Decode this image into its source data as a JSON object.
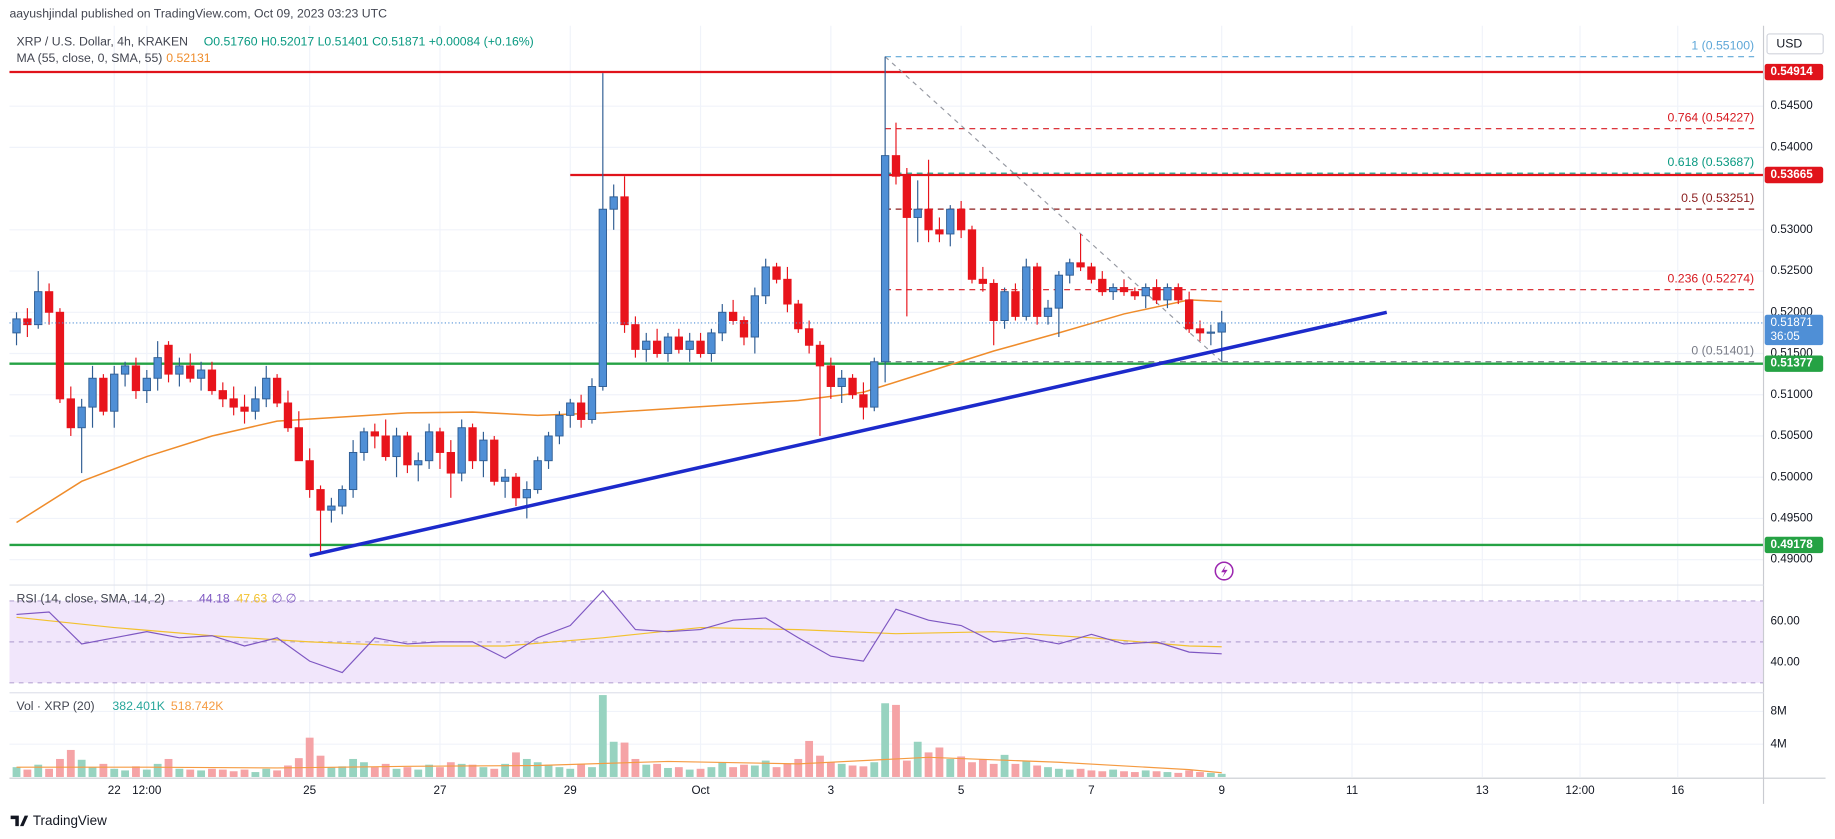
{
  "header": {
    "published": "aayushjindal published on TradingView.com, Oct 09, 2023 03:23 UTC",
    "currency": "USD",
    "brand": "TradingView"
  },
  "chart_data": {
    "type": "candlestick",
    "title": "XRP / U.S. Dollar, 4h, KRAKEN",
    "ohlc_legend": "O0.51760 H0.52017 L0.51401 C0.51871 +0.00084 (+0.16%)",
    "xlim": [
      -0.65,
      160.9
    ],
    "xticks": [
      {
        "value": 9,
        "label": "22"
      },
      {
        "value": 12,
        "label": "12:00"
      },
      {
        "value": 27,
        "label": "25"
      },
      {
        "value": 39,
        "label": "27"
      },
      {
        "value": 51,
        "label": "29"
      },
      {
        "value": 63,
        "label": "Oct"
      },
      {
        "value": 75,
        "label": "3"
      },
      {
        "value": 87,
        "label": "5"
      },
      {
        "value": 99,
        "label": "7"
      },
      {
        "value": 111,
        "label": "9"
      },
      {
        "value": 123,
        "label": "11"
      },
      {
        "value": 135,
        "label": "13"
      },
      {
        "value": 144,
        "label": "12:00"
      },
      {
        "value": 153,
        "label": "16"
      }
    ],
    "ylim": [
      0.4872,
      0.5539
    ],
    "yticks": [
      {
        "value": 0.49,
        "label": "0.49000"
      },
      {
        "value": 0.495,
        "label": "0.49500"
      },
      {
        "value": 0.5,
        "label": "0.50000"
      },
      {
        "value": 0.505,
        "label": "0.50500"
      },
      {
        "value": 0.51,
        "label": "0.51000"
      },
      {
        "value": 0.515,
        "label": "0.51500"
      },
      {
        "value": 0.52,
        "label": "0.52000"
      },
      {
        "value": 0.525,
        "label": "0.52500"
      },
      {
        "value": 0.53,
        "label": "0.53000"
      },
      {
        "value": 0.54,
        "label": "0.54000"
      },
      {
        "value": 0.545,
        "label": "0.54500"
      }
    ],
    "grid": true,
    "up_color": "#4f8fd6",
    "down_color": "#e8141c",
    "ohlc": [
      [
        0.5175,
        0.52,
        0.516,
        0.5192
      ],
      [
        0.5192,
        0.5205,
        0.517,
        0.5185
      ],
      [
        0.5185,
        0.525,
        0.518,
        0.5225
      ],
      [
        0.5225,
        0.5235,
        0.5185,
        0.52
      ],
      [
        0.52,
        0.5205,
        0.509,
        0.5095
      ],
      [
        0.5095,
        0.511,
        0.505,
        0.506
      ],
      [
        0.506,
        0.5095,
        0.5005,
        0.5085
      ],
      [
        0.5085,
        0.5135,
        0.506,
        0.512
      ],
      [
        0.512,
        0.5125,
        0.5075,
        0.508
      ],
      [
        0.508,
        0.5135,
        0.506,
        0.5125
      ],
      [
        0.5125,
        0.514,
        0.511,
        0.5135
      ],
      [
        0.5135,
        0.5145,
        0.5095,
        0.5105
      ],
      [
        0.5105,
        0.513,
        0.509,
        0.512
      ],
      [
        0.512,
        0.5165,
        0.5105,
        0.5145
      ],
      [
        0.516,
        0.5165,
        0.5115,
        0.5125
      ],
      [
        0.5125,
        0.5145,
        0.511,
        0.5135
      ],
      [
        0.5135,
        0.515,
        0.5115,
        0.512
      ],
      [
        0.512,
        0.514,
        0.5105,
        0.513
      ],
      [
        0.513,
        0.514,
        0.51,
        0.5105
      ],
      [
        0.5105,
        0.5115,
        0.5085,
        0.5095
      ],
      [
        0.5095,
        0.511,
        0.5075,
        0.5085
      ],
      [
        0.5085,
        0.51,
        0.5065,
        0.508
      ],
      [
        0.508,
        0.511,
        0.507,
        0.5095
      ],
      [
        0.5095,
        0.5135,
        0.5085,
        0.512
      ],
      [
        0.512,
        0.5125,
        0.5085,
        0.509
      ],
      [
        0.509,
        0.5105,
        0.5055,
        0.506
      ],
      [
        0.506,
        0.508,
        0.502,
        0.502
      ],
      [
        0.502,
        0.5035,
        0.4975,
        0.4985
      ],
      [
        0.4985,
        0.499,
        0.491,
        0.496
      ],
      [
        0.496,
        0.4975,
        0.4945,
        0.4965
      ],
      [
        0.4965,
        0.499,
        0.4955,
        0.4985
      ],
      [
        0.4985,
        0.5045,
        0.4975,
        0.503
      ],
      [
        0.503,
        0.506,
        0.502,
        0.5055
      ],
      [
        0.5055,
        0.5065,
        0.5035,
        0.505
      ],
      [
        0.505,
        0.507,
        0.502,
        0.5025
      ],
      [
        0.5025,
        0.506,
        0.5,
        0.505
      ],
      [
        0.505,
        0.5055,
        0.5005,
        0.5015
      ],
      [
        0.5015,
        0.503,
        0.4995,
        0.502
      ],
      [
        0.502,
        0.5065,
        0.501,
        0.5055
      ],
      [
        0.5055,
        0.506,
        0.501,
        0.503
      ],
      [
        0.503,
        0.5045,
        0.4975,
        0.5005
      ],
      [
        0.5005,
        0.507,
        0.4995,
        0.506
      ],
      [
        0.506,
        0.5065,
        0.501,
        0.502
      ],
      [
        0.502,
        0.5055,
        0.5,
        0.5045
      ],
      [
        0.5045,
        0.505,
        0.499,
        0.4995
      ],
      [
        0.4995,
        0.501,
        0.4975,
        0.5
      ],
      [
        0.5,
        0.5005,
        0.4965,
        0.4975
      ],
      [
        0.4975,
        0.4995,
        0.495,
        0.4985
      ],
      [
        0.4985,
        0.5025,
        0.498,
        0.502
      ],
      [
        0.502,
        0.5055,
        0.501,
        0.505
      ],
      [
        0.505,
        0.508,
        0.504,
        0.5075
      ],
      [
        0.5075,
        0.5095,
        0.506,
        0.509
      ],
      [
        0.509,
        0.51,
        0.506,
        0.507
      ],
      [
        0.507,
        0.512,
        0.5065,
        0.511
      ],
      [
        0.511,
        0.549,
        0.5105,
        0.5325
      ],
      [
        0.5325,
        0.5355,
        0.53,
        0.534
      ],
      [
        0.534,
        0.5365,
        0.5175,
        0.5185
      ],
      [
        0.5185,
        0.5195,
        0.5145,
        0.5155
      ],
      [
        0.5155,
        0.5175,
        0.514,
        0.5165
      ],
      [
        0.5165,
        0.518,
        0.5145,
        0.515
      ],
      [
        0.515,
        0.5175,
        0.514,
        0.517
      ],
      [
        0.517,
        0.518,
        0.515,
        0.5155
      ],
      [
        0.5155,
        0.5175,
        0.514,
        0.5165
      ],
      [
        0.5165,
        0.5175,
        0.5145,
        0.515
      ],
      [
        0.515,
        0.518,
        0.514,
        0.5175
      ],
      [
        0.5175,
        0.521,
        0.5165,
        0.52
      ],
      [
        0.52,
        0.5215,
        0.5185,
        0.519
      ],
      [
        0.519,
        0.5195,
        0.516,
        0.517
      ],
      [
        0.517,
        0.523,
        0.515,
        0.522
      ],
      [
        0.522,
        0.5265,
        0.521,
        0.5255
      ],
      [
        0.5255,
        0.526,
        0.5235,
        0.524
      ],
      [
        0.524,
        0.5255,
        0.52,
        0.521
      ],
      [
        0.521,
        0.5215,
        0.5175,
        0.518
      ],
      [
        0.518,
        0.519,
        0.515,
        0.516
      ],
      [
        0.516,
        0.5165,
        0.505,
        0.5135
      ],
      [
        0.5135,
        0.5145,
        0.5095,
        0.511
      ],
      [
        0.511,
        0.513,
        0.509,
        0.512
      ],
      [
        0.512,
        0.5125,
        0.5095,
        0.51
      ],
      [
        0.51,
        0.5115,
        0.507,
        0.5085
      ],
      [
        0.5085,
        0.5145,
        0.508,
        0.514
      ],
      [
        0.514,
        0.551,
        0.5115,
        0.539
      ],
      [
        0.539,
        0.543,
        0.5355,
        0.5365
      ],
      [
        0.5365,
        0.5375,
        0.5195,
        0.5315
      ],
      [
        0.5315,
        0.536,
        0.5285,
        0.5325
      ],
      [
        0.5325,
        0.5385,
        0.5285,
        0.53
      ],
      [
        0.53,
        0.5315,
        0.5285,
        0.5295
      ],
      [
        0.5295,
        0.533,
        0.528,
        0.5325
      ],
      [
        0.5325,
        0.5335,
        0.529,
        0.53
      ],
      [
        0.53,
        0.5305,
        0.5235,
        0.524
      ],
      [
        0.524,
        0.5255,
        0.5225,
        0.5235
      ],
      [
        0.5235,
        0.524,
        0.516,
        0.519
      ],
      [
        0.519,
        0.523,
        0.518,
        0.5225
      ],
      [
        0.5225,
        0.5235,
        0.519,
        0.5195
      ],
      [
        0.5195,
        0.5265,
        0.519,
        0.5255
      ],
      [
        0.5255,
        0.526,
        0.5185,
        0.5195
      ],
      [
        0.5195,
        0.5215,
        0.5185,
        0.5205
      ],
      [
        0.5205,
        0.525,
        0.517,
        0.5245
      ],
      [
        0.5245,
        0.5265,
        0.5235,
        0.526
      ],
      [
        0.526,
        0.5295,
        0.525,
        0.5255
      ],
      [
        0.5255,
        0.526,
        0.5235,
        0.524
      ],
      [
        0.524,
        0.525,
        0.522,
        0.5225
      ],
      [
        0.5225,
        0.5235,
        0.5215,
        0.523
      ],
      [
        0.523,
        0.524,
        0.522,
        0.5225
      ],
      [
        0.5225,
        0.523,
        0.5215,
        0.522
      ],
      [
        0.522,
        0.5235,
        0.5205,
        0.523
      ],
      [
        0.523,
        0.524,
        0.521,
        0.5215
      ],
      [
        0.5215,
        0.5235,
        0.5205,
        0.523
      ],
      [
        0.523,
        0.5235,
        0.521,
        0.5215
      ],
      [
        0.5215,
        0.5225,
        0.5175,
        0.518
      ],
      [
        0.518,
        0.519,
        0.5165,
        0.5175
      ],
      [
        0.5175,
        0.5185,
        0.516,
        0.5176
      ],
      [
        0.5176,
        0.52017,
        0.51401,
        0.51871
      ]
    ],
    "ma": {
      "name": "MA (55, close, 0, SMA, 55)",
      "legend_label": "0.52131",
      "color": "#ef8c2b",
      "x": [
        0,
        6,
        12,
        18,
        24,
        30,
        36,
        42,
        48,
        54,
        60,
        66,
        72,
        78,
        84,
        90,
        96,
        102,
        108,
        111
      ],
      "values": [
        0.4945,
        0.4995,
        0.5025,
        0.505,
        0.5068,
        0.5073,
        0.5078,
        0.5079,
        0.5075,
        0.5078,
        0.5083,
        0.5088,
        0.5093,
        0.5103,
        0.5128,
        0.5153,
        0.5175,
        0.5198,
        0.5215,
        0.52131
      ]
    },
    "levels": [
      {
        "value": 0.54914,
        "label": "0.54914",
        "color": "#e0131b"
      },
      {
        "value": 0.53665,
        "label": "0.53665",
        "color": "#e0131b",
        "from": 51
      },
      {
        "value": 0.51377,
        "label": "0.51377",
        "color": "#25a244"
      },
      {
        "value": 0.49178,
        "label": "0.49178",
        "color": "#25a244"
      }
    ],
    "fib": [
      {
        "value": 0.551,
        "label": "1 (0.55100)",
        "color": "#5ea7d8"
      },
      {
        "value": 0.54227,
        "label": "0.764 (0.54227)",
        "color": "#d71920"
      },
      {
        "value": 0.53687,
        "label": "0.618 (0.53687)",
        "color": "#089981"
      },
      {
        "value": 0.53251,
        "label": "0.5 (0.53251)",
        "color": "#8b1c1c"
      },
      {
        "value": 0.52274,
        "label": "0.236 (0.52274)",
        "color": "#d71920"
      },
      {
        "value": 0.51401,
        "label": "0 (0.51401)",
        "color": "#787b86"
      }
    ],
    "fib_diagonal": {
      "x": [
        80,
        111
      ],
      "values": [
        0.551,
        0.51401
      ]
    },
    "trendline": {
      "color": "#1c2acb",
      "x": [
        27,
        126.2
      ],
      "values": [
        0.4905,
        0.52
      ]
    },
    "last_price": {
      "label": "0.51871",
      "countdown": "36:05"
    },
    "rsi": {
      "name": "RSI (14, close, SMA, 14, 2)",
      "legend_label": "44.18",
      "sma_label": "47.63",
      "na": "∅ ∅",
      "color": "#7e57c2",
      "sma_color": "#f2c12e",
      "band_fill": "#f1e6fb",
      "ylim": [
        26.3,
        74.9
      ],
      "yticks": [
        {
          "value": 40,
          "label": "40.00"
        },
        {
          "value": 60,
          "label": "60.00"
        }
      ],
      "bands": [
        30,
        50,
        70
      ],
      "x": [
        0,
        3,
        6,
        9,
        12,
        15,
        18,
        21,
        24,
        27,
        30,
        33,
        36,
        39,
        42,
        45,
        48,
        51,
        54,
        57,
        60,
        63,
        66,
        69,
        72,
        75,
        78,
        81,
        84,
        87,
        90,
        93,
        96,
        99,
        102,
        105,
        108,
        111
      ],
      "values": [
        63.4,
        64.6,
        49,
        52,
        55,
        52,
        53,
        48,
        52,
        40.6,
        35,
        52,
        49,
        50,
        50,
        42,
        52,
        58,
        75,
        56,
        55,
        56,
        60.6,
        61.7,
        52,
        43,
        40.6,
        66,
        60.6,
        58,
        50,
        52,
        49,
        53.7,
        49,
        50,
        45,
        44.18
      ],
      "sma_x": [
        0,
        9,
        18,
        27,
        36,
        45,
        54,
        63,
        72,
        81,
        90,
        99,
        108,
        111
      ],
      "sma_values": [
        62,
        57,
        53,
        50,
        48,
        48,
        52,
        57,
        56,
        54,
        55,
        52,
        48,
        47.63
      ]
    },
    "volume": {
      "name": "Vol · XRP (20)",
      "legend_label": "382.401K",
      "ma_label": "518.742K",
      "up_color": "#97d3c0",
      "down_color": "#f5a3a6",
      "ma_color": "#f59b42",
      "ylim": [
        0,
        10
      ],
      "yticks": [
        {
          "value": 4,
          "label": "4M"
        },
        {
          "value": 8,
          "label": "8M"
        }
      ],
      "values": [
        1.2,
        0.9,
        1.5,
        1.0,
        2.2,
        3.3,
        2.1,
        1.2,
        1.6,
        1.0,
        0.8,
        1.3,
        0.9,
        1.6,
        2.2,
        1.0,
        0.9,
        0.8,
        1.0,
        0.9,
        0.7,
        0.9,
        0.6,
        1.0,
        0.8,
        1.4,
        2.3,
        4.8,
        2.6,
        1.2,
        1.3,
        2.2,
        1.8,
        1.2,
        1.6,
        1.0,
        1.2,
        0.9,
        1.5,
        1.2,
        1.8,
        1.6,
        1.5,
        1.2,
        1.0,
        1.6,
        3.0,
        2.2,
        1.8,
        1.5,
        1.2,
        1.0,
        1.6,
        1.2,
        10.0,
        4.3,
        4.2,
        2.2,
        1.5,
        1.6,
        1.1,
        1.2,
        0.9,
        1.0,
        1.2,
        1.8,
        1.2,
        1.5,
        1.4,
        2.0,
        1.2,
        1.6,
        2.2,
        4.4,
        2.6,
        1.8,
        1.6,
        1.4,
        1.3,
        1.8,
        9.0,
        8.8,
        2.0,
        4.3,
        3.0,
        3.6,
        2.2,
        2.5,
        1.8,
        2.2,
        1.6,
        2.7,
        1.6,
        2.0,
        1.4,
        1.2,
        1.0,
        0.9,
        1.0,
        0.8,
        0.7,
        0.9,
        0.7,
        0.6,
        0.8,
        0.7,
        0.6,
        0.5,
        0.8,
        0.6,
        0.5,
        0.382401
      ],
      "ma_x": [
        0,
        12,
        24,
        36,
        48,
        60,
        72,
        84,
        96,
        108,
        111
      ],
      "ma_values": [
        1.2,
        1.2,
        1.1,
        1.3,
        1.4,
        1.9,
        1.6,
        2.4,
        1.8,
        0.9,
        0.518742
      ]
    }
  }
}
